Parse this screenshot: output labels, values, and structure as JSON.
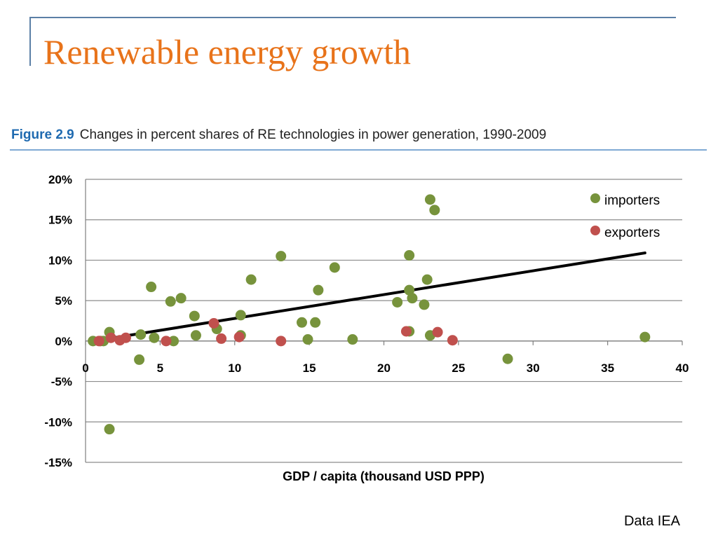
{
  "slide": {
    "title": "Renewable energy growth",
    "source_note": "Data IEA",
    "accent_color": "#e8731a",
    "rule_color": "#5b7fa6"
  },
  "figure": {
    "label": "Figure 2.9",
    "caption": "Changes in percent shares of RE technologies in power generation, 1990-2009"
  },
  "chart_data": {
    "type": "scatter",
    "title": "",
    "xlabel": "GDP / capita  (thousand USD PPP)",
    "ylabel": "",
    "xlim": [
      0,
      40
    ],
    "ylim": [
      -15,
      20
    ],
    "x_ticks": [
      0,
      5,
      10,
      15,
      20,
      25,
      30,
      35,
      40
    ],
    "x_tick_labels": [
      "0",
      "5",
      "10",
      "15",
      "20",
      "25",
      "30",
      "35",
      "40"
    ],
    "y_ticks": [
      20,
      15,
      10,
      5,
      0,
      -5,
      -10,
      -15
    ],
    "y_tick_labels": [
      "20%",
      "15%",
      "10%",
      "5%",
      "0%",
      "-5%",
      "-10%",
      "-15%"
    ],
    "grid": "horizontal",
    "legend_position": "top-right",
    "series": [
      {
        "name": "importers",
        "color": "#77933c",
        "points": [
          [
            0.5,
            0.0
          ],
          [
            1.0,
            0.0
          ],
          [
            1.2,
            0.0
          ],
          [
            1.6,
            1.1
          ],
          [
            1.6,
            -10.9
          ],
          [
            3.7,
            0.8
          ],
          [
            3.6,
            -2.3
          ],
          [
            4.4,
            6.7
          ],
          [
            4.6,
            0.4
          ],
          [
            5.7,
            4.9
          ],
          [
            5.9,
            0.0
          ],
          [
            6.4,
            5.3
          ],
          [
            7.3,
            3.1
          ],
          [
            7.4,
            0.7
          ],
          [
            8.8,
            1.5
          ],
          [
            10.4,
            3.2
          ],
          [
            10.4,
            0.7
          ],
          [
            11.1,
            7.6
          ],
          [
            13.1,
            10.5
          ],
          [
            14.5,
            2.3
          ],
          [
            14.9,
            0.2
          ],
          [
            15.4,
            2.3
          ],
          [
            15.6,
            6.3
          ],
          [
            16.7,
            9.1
          ],
          [
            17.9,
            0.2
          ],
          [
            20.9,
            4.8
          ],
          [
            21.7,
            10.6
          ],
          [
            21.7,
            6.3
          ],
          [
            21.7,
            1.2
          ],
          [
            21.9,
            5.3
          ],
          [
            22.7,
            4.5
          ],
          [
            22.9,
            7.6
          ],
          [
            23.1,
            17.5
          ],
          [
            23.1,
            0.7
          ],
          [
            23.4,
            16.2
          ],
          [
            28.3,
            -2.2
          ],
          [
            37.5,
            0.5
          ]
        ]
      },
      {
        "name": "exporters",
        "color": "#c0504d",
        "points": [
          [
            0.9,
            0.0
          ],
          [
            1.7,
            0.4
          ],
          [
            2.3,
            0.1
          ],
          [
            2.7,
            0.4
          ],
          [
            5.4,
            0.0
          ],
          [
            8.6,
            2.2
          ],
          [
            9.1,
            0.3
          ],
          [
            10.3,
            0.5
          ],
          [
            13.1,
            0.0
          ],
          [
            21.5,
            1.2
          ],
          [
            23.6,
            1.1
          ],
          [
            24.6,
            0.1
          ]
        ]
      }
    ],
    "trendline": {
      "color": "#000000",
      "x": [
        0.5,
        37.5
      ],
      "y": [
        0.0,
        10.9
      ]
    }
  }
}
